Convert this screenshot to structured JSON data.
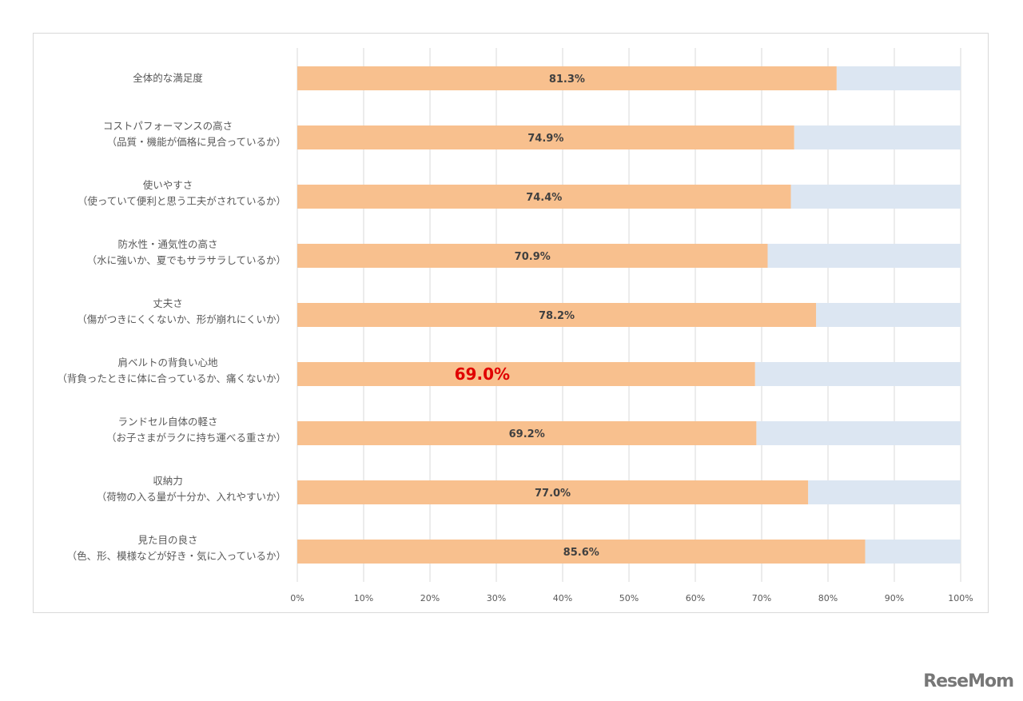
{
  "chart_data": {
    "type": "bar",
    "orientation": "horizontal",
    "stacked_to_100": true,
    "categories": [
      [
        "全体的な満足度"
      ],
      [
        "コストパフォーマンスの高さ",
        "（品質・機能が価格に見合っているか）"
      ],
      [
        "使いやすさ",
        "（使っていて便利と思う工夫がされているか）"
      ],
      [
        "防水性・通気性の高さ",
        "（水に強いか、夏でもサラサラしているか）"
      ],
      [
        "丈夫さ",
        "（傷がつきにくくないか、形が崩れにくいか）"
      ],
      [
        "肩ベルトの背負い心地",
        "（背負ったときに体に合っているか、痛くないか）"
      ],
      [
        "ランドセル自体の軽さ",
        "（お子さまがラクに持ち運べる重さか）"
      ],
      [
        "収納力",
        "（荷物の入る量が十分か、入れやすいか）"
      ],
      [
        "見た目の良さ",
        "（色、形、模様などが好き・気に入っているか）"
      ]
    ],
    "values": [
      81.3,
      74.9,
      74.4,
      70.9,
      78.2,
      69.0,
      69.2,
      77.0,
      85.6
    ],
    "data_labels": [
      "81.3%",
      "74.9%",
      "74.4%",
      "70.9%",
      "78.2%",
      "69.0%",
      "69.2%",
      "77.0%",
      "85.6%"
    ],
    "highlighted_index": 5,
    "xlim": [
      0,
      100
    ],
    "x_ticks": [
      "0%",
      "10%",
      "20%",
      "30%",
      "40%",
      "50%",
      "60%",
      "70%",
      "80%",
      "90%",
      "100%"
    ],
    "grid": true,
    "colors": {
      "value": "#f8c08e",
      "remainder": "#dce6f2",
      "highlight_label": "#e00000",
      "grid": "#d9d9d9"
    }
  },
  "logo": "ReseMom"
}
